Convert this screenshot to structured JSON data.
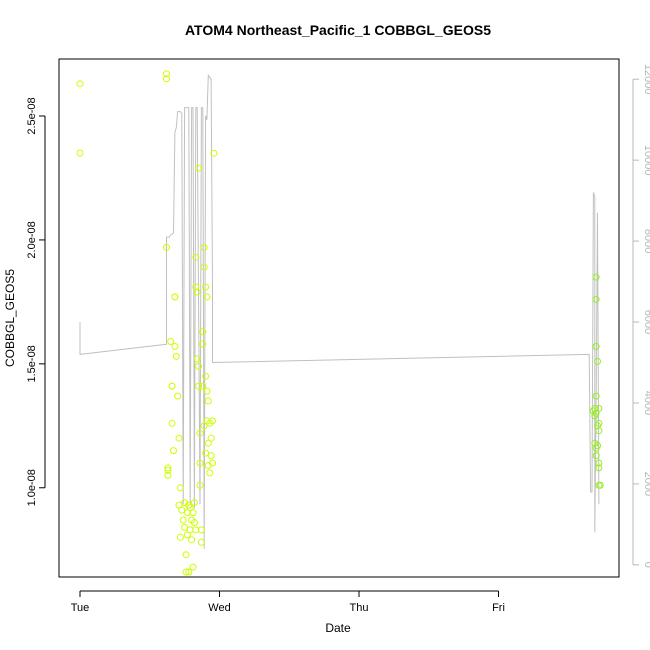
{
  "chart_data": {
    "type": "scatter",
    "title": "ATOM4 Northeast_Pacific_1 COBBGL_GEOS5",
    "xlabel": "Date",
    "ylabel": "COBBGL_GEOS5",
    "x_range_days": [
      0,
      3.79
    ],
    "x_ticks": [
      {
        "label": "Tue",
        "value": 0
      },
      {
        "label": "Wed",
        "value": 1
      },
      {
        "label": "Thu",
        "value": 2
      },
      {
        "label": "Fri",
        "value": 3
      }
    ],
    "ylim": [
      6.4e-09,
      2.73e-08
    ],
    "y_ticks": [
      {
        "label": "1.0e-08",
        "value": 1e-08
      },
      {
        "label": "1.5e-08",
        "value": 1.5e-08
      },
      {
        "label": "2.0e-08",
        "value": 2e-08
      },
      {
        "label": "2.5e-08",
        "value": 2.5e-08
      }
    ],
    "y2lim": [
      -300,
      12500
    ],
    "y2_ticks": [
      {
        "label": "0",
        "value": 0
      },
      {
        "label": "2000",
        "value": 2000
      },
      {
        "label": "4000",
        "value": 4000
      },
      {
        "label": "6000",
        "value": 6000
      },
      {
        "label": "8000",
        "value": 8000
      },
      {
        "label": "10000",
        "value": 10000
      },
      {
        "label": "12000",
        "value": 12000
      }
    ],
    "point_color": "#ccff00",
    "point_color_late": "#99ee22",
    "line_color": "#c0c0c0",
    "points": [
      [
        0.0,
        2.63e-08
      ],
      [
        0.0,
        2.35e-08
      ],
      [
        0.62,
        2.67e-08
      ],
      [
        0.62,
        2.65e-08
      ],
      [
        0.62,
        1.97e-08
      ],
      [
        0.63,
        1.07e-08
      ],
      [
        0.63,
        1.05e-08
      ],
      [
        0.63,
        1.08e-08
      ],
      [
        0.65,
        1.59e-08
      ],
      [
        0.66,
        1.41e-08
      ],
      [
        0.66,
        1.26e-08
      ],
      [
        0.66,
        1.41e-08
      ],
      [
        0.67,
        1.15e-08
      ],
      [
        0.68,
        1.77e-08
      ],
      [
        0.68,
        1.77e-08
      ],
      [
        0.68,
        1.57e-08
      ],
      [
        0.69,
        1.53e-08
      ],
      [
        0.7,
        1.37e-08
      ],
      [
        0.71,
        1.2e-08
      ],
      [
        0.71,
        9.3e-09
      ],
      [
        0.72,
        1e-08
      ],
      [
        0.72,
        8e-09
      ],
      [
        0.73,
        9.1e-09
      ],
      [
        0.74,
        8.7e-09
      ],
      [
        0.75,
        9.4e-09
      ],
      [
        0.75,
        8.4e-09
      ],
      [
        0.76,
        7.3e-09
      ],
      [
        0.76,
        6.6e-09
      ],
      [
        0.77,
        9e-09
      ],
      [
        0.77,
        8.1e-09
      ],
      [
        0.78,
        9.3e-09
      ],
      [
        0.78,
        6.6e-09
      ],
      [
        0.79,
        8.3e-09
      ],
      [
        0.79,
        9.2e-09
      ],
      [
        0.8,
        8.7e-09
      ],
      [
        0.8,
        7.9e-09
      ],
      [
        0.81,
        6.8e-09
      ],
      [
        0.81,
        9e-09
      ],
      [
        0.82,
        9.4e-09
      ],
      [
        0.82,
        8.6e-09
      ],
      [
        0.83,
        8.3e-09
      ],
      [
        0.83,
        1.93e-08
      ],
      [
        0.83,
        1.81e-08
      ],
      [
        0.84,
        1.79e-08
      ],
      [
        0.84,
        1.52e-08
      ],
      [
        0.85,
        1.49e-08
      ],
      [
        0.85,
        1.41e-08
      ],
      [
        0.85,
        2.29e-08
      ],
      [
        0.86,
        1.22e-08
      ],
      [
        0.86,
        1.1e-08
      ],
      [
        0.86,
        1.01e-08
      ],
      [
        0.87,
        8.3e-09
      ],
      [
        0.87,
        7.8e-09
      ],
      [
        0.88,
        1.63e-08
      ],
      [
        0.88,
        1.58e-08
      ],
      [
        0.88,
        1.41e-08
      ],
      [
        0.89,
        1.89e-08
      ],
      [
        0.89,
        1.97e-08
      ],
      [
        0.89,
        1.25e-08
      ],
      [
        0.9,
        1.81e-08
      ],
      [
        0.9,
        1.45e-08
      ],
      [
        0.9,
        1.14e-08
      ],
      [
        0.91,
        1.77e-08
      ],
      [
        0.91,
        1.39e-08
      ],
      [
        0.91,
        1.27e-08
      ],
      [
        0.92,
        1.35e-08
      ],
      [
        0.92,
        1.09e-08
      ],
      [
        0.92,
        1.18e-08
      ],
      [
        0.93,
        1.26e-08
      ],
      [
        0.93,
        1.06e-08
      ],
      [
        0.94,
        1.2e-08
      ],
      [
        0.94,
        1.13e-08
      ],
      [
        0.95,
        1.27e-08
      ],
      [
        0.95,
        1.1e-08
      ],
      [
        0.96,
        2.35e-08
      ],
      [
        3.7,
        1.85e-08
      ],
      [
        3.7,
        1.76e-08
      ],
      [
        3.7,
        1.57e-08
      ],
      [
        3.71,
        1.51e-08
      ],
      [
        3.7,
        1.37e-08
      ],
      [
        3.69,
        1.32e-08
      ],
      [
        3.69,
        1.29e-08
      ],
      [
        3.7,
        1.3e-08
      ],
      [
        3.68,
        1.31e-08
      ],
      [
        3.69,
        1.18e-08
      ],
      [
        3.7,
        1.16e-08
      ],
      [
        3.71,
        1.25e-08
      ],
      [
        3.72,
        1.32e-08
      ],
      [
        3.72,
        1.26e-08
      ],
      [
        3.72,
        1.23e-08
      ],
      [
        3.71,
        1.17e-08
      ],
      [
        3.7,
        1.13e-08
      ],
      [
        3.72,
        1.1e-08
      ],
      [
        3.72,
        1.08e-08
      ],
      [
        3.72,
        1.01e-08
      ],
      [
        3.73,
        1.01e-08
      ]
    ],
    "line": [
      [
        0.0,
        6000
      ],
      [
        0.0,
        5200
      ],
      [
        0.62,
        5450
      ],
      [
        0.62,
        8100
      ],
      [
        0.63,
        8100
      ],
      [
        0.64,
        8100
      ],
      [
        0.65,
        8150
      ],
      [
        0.67,
        8200
      ],
      [
        0.68,
        10700
      ],
      [
        0.69,
        10800
      ],
      [
        0.7,
        11200
      ],
      [
        0.72,
        11200
      ],
      [
        0.73,
        11150
      ],
      [
        0.74,
        1500
      ],
      [
        0.75,
        11300
      ],
      [
        0.78,
        11300
      ],
      [
        0.79,
        1500
      ],
      [
        0.8,
        11300
      ],
      [
        0.81,
        11300
      ],
      [
        0.82,
        1400
      ],
      [
        0.83,
        11300
      ],
      [
        0.84,
        11300
      ],
      [
        0.86,
        1500
      ],
      [
        0.87,
        11300
      ],
      [
        0.88,
        11300
      ],
      [
        0.89,
        400
      ],
      [
        0.9,
        11100
      ],
      [
        0.91,
        11000
      ],
      [
        0.92,
        12100
      ],
      [
        0.94,
        12000
      ],
      [
        0.95,
        6900
      ],
      [
        0.95,
        5000
      ],
      [
        3.65,
        5200
      ],
      [
        3.66,
        1800
      ],
      [
        3.67,
        1800
      ],
      [
        3.68,
        9200
      ],
      [
        3.69,
        9100
      ],
      [
        3.69,
        800
      ],
      [
        3.7,
        4000
      ],
      [
        3.71,
        8700
      ],
      [
        3.72,
        1500
      ]
    ]
  }
}
